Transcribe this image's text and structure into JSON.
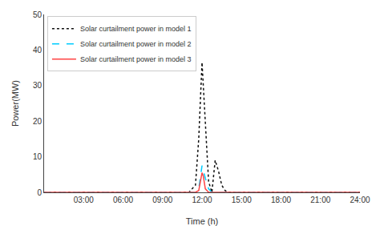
{
  "chart_data": {
    "type": "line",
    "xlabel": "Time (h)",
    "ylabel": "Power(MW)",
    "xlim": [
      0,
      24
    ],
    "ylim": [
      0,
      50
    ],
    "xticks": [
      {
        "value": 3,
        "label": "03:00"
      },
      {
        "value": 6,
        "label": "06:00"
      },
      {
        "value": 9,
        "label": "09:00"
      },
      {
        "value": 12,
        "label": "12:00"
      },
      {
        "value": 15,
        "label": "15:00"
      },
      {
        "value": 18,
        "label": "18:00"
      },
      {
        "value": 21,
        "label": "21:00"
      },
      {
        "value": 24,
        "label": "24:00"
      }
    ],
    "yticks": [
      0,
      10,
      20,
      30,
      40,
      50
    ],
    "grid": false,
    "legend": "upper left",
    "series": [
      {
        "name": "Solar curtailment power in model 1",
        "color": "#111111",
        "line_style": "dotted",
        "x": [
          0,
          11.0,
          11.5,
          11.75,
          12.0,
          12.25,
          12.5,
          12.75,
          13.0,
          13.25,
          13.5,
          13.75,
          14.0,
          24
        ],
        "values": [
          0,
          0,
          2,
          15,
          36.5,
          20,
          3,
          0,
          9,
          6,
          2,
          0.5,
          0,
          0
        ]
      },
      {
        "name": "Solar curtailment power in model 2",
        "color": "#00CCFF",
        "line_style": "dashed",
        "x": [
          0,
          11.5,
          11.75,
          12.0,
          12.25,
          12.5,
          12.75,
          13.0,
          24
        ],
        "values": [
          0,
          0,
          1,
          7.5,
          4,
          1,
          0,
          0,
          0
        ]
      },
      {
        "name": "Solar curtailment power in model 3",
        "color": "#FF4444",
        "line_style": "solid",
        "x": [
          0,
          11.5,
          11.75,
          12.0,
          12.1,
          12.25,
          12.5,
          24
        ],
        "values": [
          0,
          0,
          0.5,
          5.5,
          4.5,
          1,
          0,
          0
        ]
      }
    ]
  }
}
